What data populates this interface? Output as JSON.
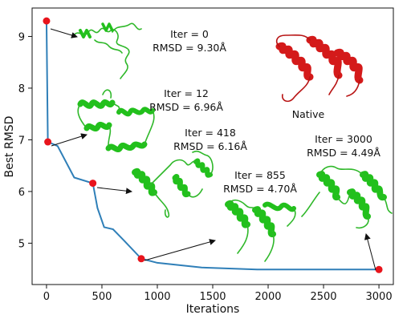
{
  "chart_data": {
    "type": "line",
    "xlabel": "Iterations",
    "ylabel": "Best RMSD",
    "xlim": [
      -130,
      3130
    ],
    "ylim": [
      4.2,
      9.55
    ],
    "xticks": [
      0,
      500,
      1000,
      1500,
      2000,
      2500,
      3000
    ],
    "yticks": [
      5,
      6,
      7,
      8,
      9
    ],
    "grid": false,
    "series": [
      {
        "x": [
          0,
          12,
          100,
          250,
          418,
          460,
          520,
          600,
          700,
          855,
          1000,
          1400,
          1900,
          2400,
          3000
        ],
        "y": [
          9.3,
          6.96,
          6.88,
          6.27,
          6.16,
          5.68,
          5.31,
          5.27,
          5.05,
          4.7,
          4.62,
          4.53,
          4.49,
          4.49,
          4.49
        ],
        "color": "#2f7fb8"
      }
    ],
    "highlight_points": [
      {
        "x": 0,
        "y": 9.3
      },
      {
        "x": 12,
        "y": 6.96
      },
      {
        "x": 418,
        "y": 6.16
      },
      {
        "x": 855,
        "y": 4.7
      },
      {
        "x": 3000,
        "y": 4.49
      }
    ],
    "annotations": [
      {
        "iter": "Iter = 0",
        "rmsd": "RMSD = 9.30Å"
      },
      {
        "iter": "Iter = 12",
        "rmsd": "RMSD = 6.96Å"
      },
      {
        "iter": "Iter = 418",
        "rmsd": "RMSD = 6.16Å"
      },
      {
        "iter": "Iter = 855",
        "rmsd": "RMSD = 4.70Å"
      },
      {
        "iter": "Iter = 3000",
        "rmsd": "RMSD = 4.49Å"
      }
    ],
    "native_label": "Native",
    "colors": {
      "line": "#2f7fb8",
      "point": "#e8141c",
      "predicted": "#22c01c",
      "native": "#d41a1a"
    }
  }
}
